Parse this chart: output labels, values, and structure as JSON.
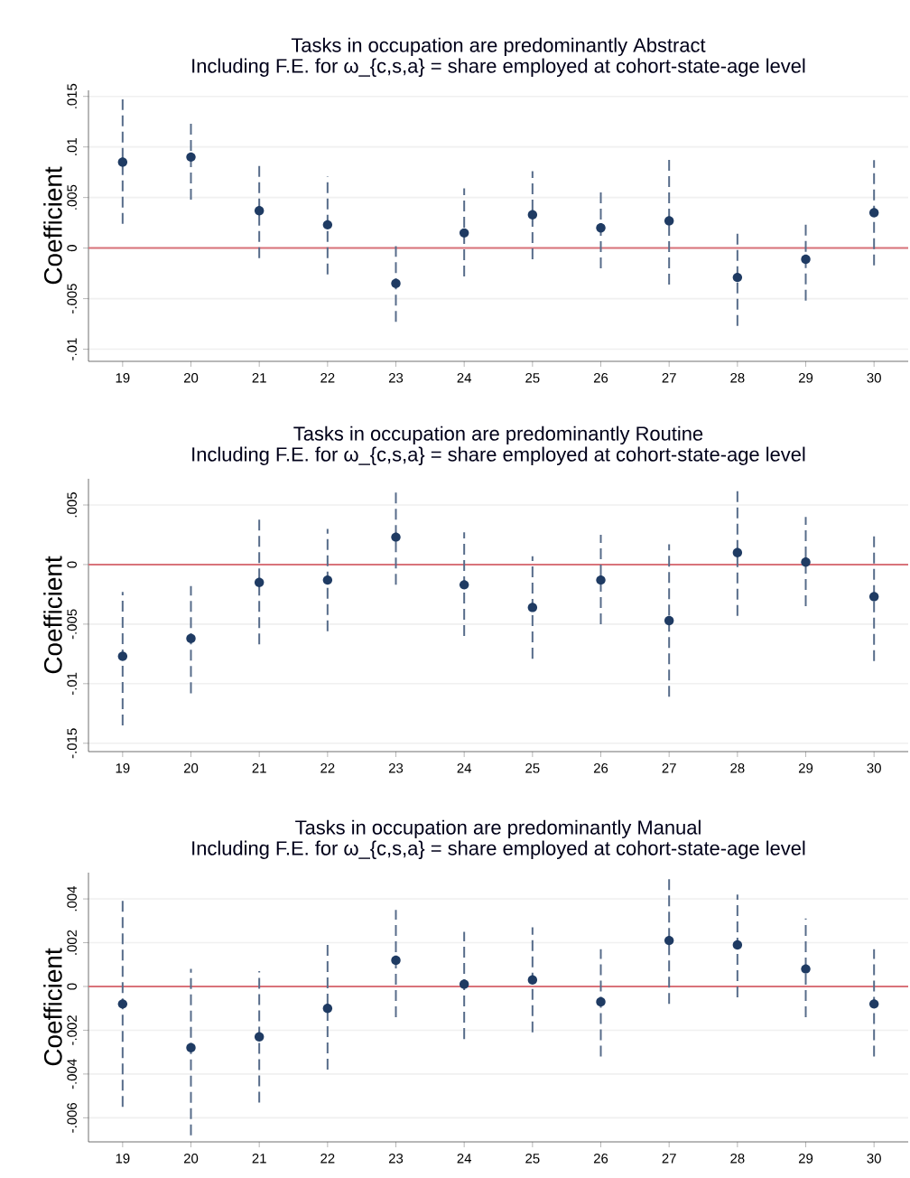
{
  "chart_data": [
    {
      "type": "scatter",
      "title": "Tasks in occupation are predominantly Abstract",
      "subtitle": "Including F.E. for ω_{c,s,a} = share employed at cohort-state-age level",
      "ylabel": "Coefficient",
      "color": "#1f3b63",
      "marker": "circle",
      "grid": "y",
      "x": [
        19,
        20,
        21,
        22,
        23,
        24,
        25,
        26,
        27,
        28,
        29,
        30
      ],
      "values": [
        0.0085,
        0.009,
        0.0037,
        0.0023,
        -0.0035,
        0.0015,
        0.0033,
        0.002,
        0.0027,
        -0.0029,
        -0.0011,
        0.0035
      ],
      "errors": [
        [
          0.0024,
          0.0147
        ],
        [
          0.0048,
          0.0123
        ],
        [
          -0.001,
          0.0085
        ],
        [
          -0.0026,
          0.0071
        ],
        [
          -0.0073,
          0.0002
        ],
        [
          -0.0028,
          0.0059
        ],
        [
          -0.0011,
          0.0076
        ],
        [
          -0.002,
          0.0056
        ],
        [
          -0.0036,
          0.0089
        ],
        [
          -0.0077,
          0.0019
        ],
        [
          -0.0052,
          0.0024
        ],
        [
          -0.0017,
          0.0087
        ]
      ],
      "xlim": [
        18.5,
        30.5
      ],
      "xticks": [
        19,
        20,
        21,
        22,
        23,
        24,
        25,
        26,
        27,
        28,
        29,
        30
      ],
      "ylim": [
        -0.0112,
        0.0156
      ],
      "yticks": [
        {
          "value": -0.01,
          "label": "-.01"
        },
        {
          "value": -0.005,
          "label": "-.005"
        },
        {
          "value": 0,
          "label": "0"
        },
        {
          "value": 0.005,
          "label": ".005"
        },
        {
          "value": 0.01,
          "label": ".01"
        },
        {
          "value": 0.015,
          "label": ".015"
        }
      ],
      "ref_lines": [
        {
          "axis": "y",
          "value": 0,
          "color": "#d9737a"
        }
      ]
    },
    {
      "type": "scatter",
      "title": "Tasks in occupation are predominantly Routine",
      "subtitle": "Including F.E. for ω_{c,s,a} = share employed at cohort-state-age level",
      "ylabel": "Coefficient",
      "color": "#1f3b63",
      "marker": "circle",
      "grid": "y",
      "x": [
        19,
        20,
        21,
        22,
        23,
        24,
        25,
        26,
        27,
        28,
        29,
        30
      ],
      "values": [
        -0.0077,
        -0.0062,
        -0.0015,
        -0.0013,
        0.0023,
        -0.0017,
        -0.0036,
        -0.0013,
        -0.0047,
        0.001,
        0.0002,
        -0.0027
      ],
      "errors": [
        [
          -0.0135,
          -0.0023
        ],
        [
          -0.0108,
          -0.0018
        ],
        [
          -0.0067,
          0.0039
        ],
        [
          -0.0056,
          0.003
        ],
        [
          -0.0017,
          0.0062
        ],
        [
          -0.006,
          0.0027
        ],
        [
          -0.0079,
          0.0007
        ],
        [
          -0.005,
          0.0025
        ],
        [
          -0.0111,
          0.0017
        ],
        [
          -0.0043,
          0.0064
        ],
        [
          -0.0035,
          0.004
        ],
        [
          -0.0081,
          0.0028
        ]
      ],
      "xlim": [
        18.5,
        30.5
      ],
      "xticks": [
        19,
        20,
        21,
        22,
        23,
        24,
        25,
        26,
        27,
        28,
        29,
        30
      ],
      "ylim": [
        -0.0157,
        0.0072
      ],
      "yticks": [
        {
          "value": -0.015,
          "label": "-.015"
        },
        {
          "value": -0.01,
          "label": "-.01"
        },
        {
          "value": -0.005,
          "label": "-.005"
        },
        {
          "value": 0,
          "label": "0"
        },
        {
          "value": 0.005,
          "label": ".005"
        }
      ],
      "ref_lines": [
        {
          "axis": "y",
          "value": 0,
          "color": "#d9737a"
        }
      ]
    },
    {
      "type": "scatter",
      "title": "Tasks in occupation are predominantly Manual",
      "subtitle": "Including F.E. for ω_{c,s,a} = share employed at cohort-state-age level",
      "ylabel": "Coefficient",
      "color": "#1f3b63",
      "marker": "circle",
      "grid": "y",
      "x": [
        19,
        20,
        21,
        22,
        23,
        24,
        25,
        26,
        27,
        28,
        29,
        30
      ],
      "values": [
        -0.0008,
        -0.0028,
        -0.0023,
        -0.001,
        0.0012,
        0.0001,
        0.0003,
        -0.0007,
        0.0021,
        0.0019,
        0.0008,
        -0.0008
      ],
      "errors": [
        [
          -0.0055,
          0.004
        ],
        [
          -0.0068,
          0.0008
        ],
        [
          -0.0053,
          0.0007
        ],
        [
          -0.0038,
          0.0019
        ],
        [
          -0.0014,
          0.0035
        ],
        [
          -0.0024,
          0.0025
        ],
        [
          -0.0021,
          0.0027
        ],
        [
          -0.0032,
          0.0017
        ],
        [
          -0.0008,
          0.0049
        ],
        [
          -0.0005,
          0.0042
        ],
        [
          -0.0014,
          0.0031
        ],
        [
          -0.0032,
          0.0017
        ]
      ],
      "xlim": [
        18.5,
        30.5
      ],
      "xticks": [
        19,
        20,
        21,
        22,
        23,
        24,
        25,
        26,
        27,
        28,
        29,
        30
      ],
      "ylim": [
        -0.0071,
        0.0052
      ],
      "yticks": [
        {
          "value": -0.006,
          "label": "-.006"
        },
        {
          "value": -0.004,
          "label": "-.004"
        },
        {
          "value": -0.002,
          "label": "-.002"
        },
        {
          "value": 0,
          "label": "0"
        },
        {
          "value": 0.002,
          "label": ".002"
        },
        {
          "value": 0.004,
          "label": ".004"
        }
      ],
      "ref_lines": [
        {
          "axis": "y",
          "value": 0,
          "color": "#d9737a"
        }
      ]
    }
  ]
}
